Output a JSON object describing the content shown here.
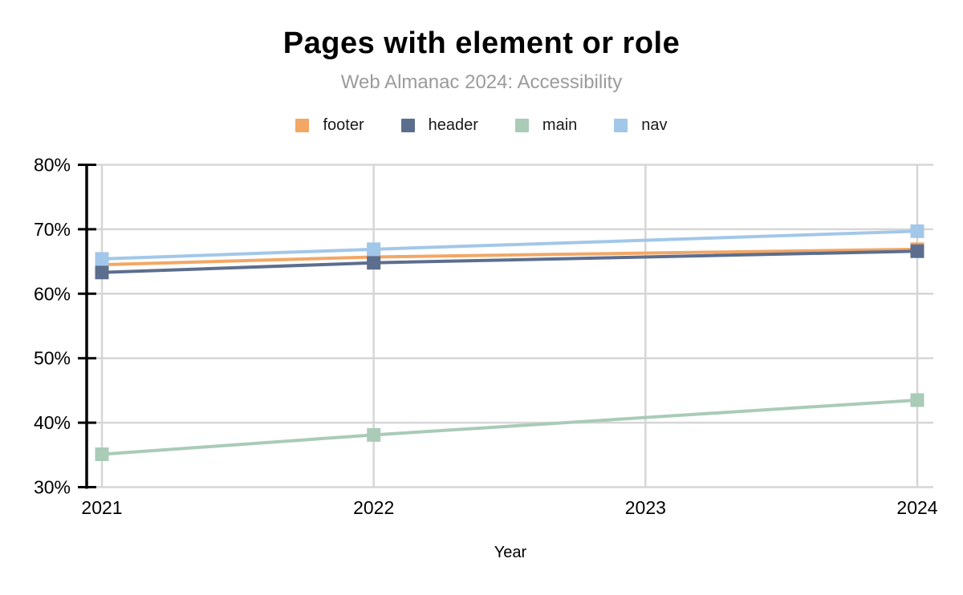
{
  "chart_data": {
    "type": "line",
    "title": "Pages with element or role",
    "subtitle": "Web Almanac 2024: Accessibility",
    "xlabel": "Year",
    "xlim": [
      2021,
      2024
    ],
    "ylim": [
      30,
      80
    ],
    "x_ticks": [
      "2021",
      "2022",
      "2023",
      "2024"
    ],
    "y_ticks": [
      "30%",
      "40%",
      "50%",
      "60%",
      "70%",
      "80%"
    ],
    "y_tick_values": [
      30,
      40,
      50,
      60,
      70,
      80
    ],
    "grid": true,
    "legend_position": "top",
    "marker": "square",
    "series": [
      {
        "name": "footer",
        "color": "#F2A765",
        "x": [
          2021,
          2022,
          2024
        ],
        "values": [
          64.5,
          65.7,
          66.9
        ]
      },
      {
        "name": "header",
        "color": "#5C6E8E",
        "x": [
          2021,
          2022,
          2024
        ],
        "values": [
          63.3,
          64.8,
          66.6
        ]
      },
      {
        "name": "main",
        "color": "#A9CBB7",
        "x": [
          2021,
          2022,
          2024
        ],
        "values": [
          35.1,
          38.1,
          43.5
        ]
      },
      {
        "name": "nav",
        "color": "#A2C7E9",
        "x": [
          2021,
          2022,
          2024
        ],
        "values": [
          65.4,
          66.9,
          69.7
        ]
      }
    ],
    "colors": {
      "grid": "#D6D6D6",
      "axis": "#000000",
      "title_text": "#000000",
      "subtitle_text": "#9B9B9B"
    }
  }
}
